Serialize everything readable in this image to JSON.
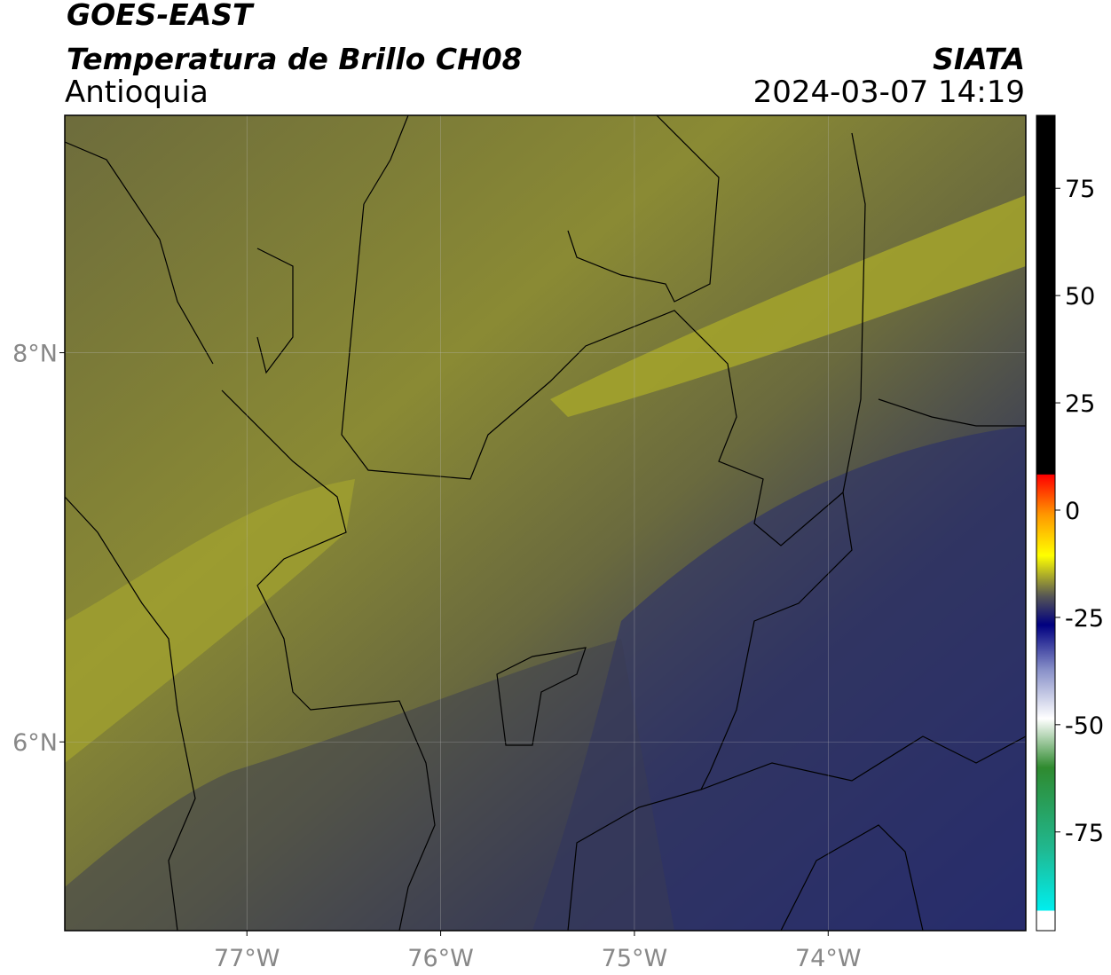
{
  "header": {
    "title": "GOES-EAST",
    "subtitle": "Temperatura de Brillo CH08",
    "source": "SIATA",
    "region": "Antioquia",
    "timestamp": "2024-03-07 14:19"
  },
  "map": {
    "xlim": [
      -77.94,
      -72.98
    ],
    "ylim": [
      5.03,
      9.22
    ],
    "xticks": [
      {
        "value": -77,
        "label": "77°W"
      },
      {
        "value": -76,
        "label": "76°W"
      },
      {
        "value": -75,
        "label": "75°W"
      },
      {
        "value": -74,
        "label": "74°W"
      }
    ],
    "yticks": [
      {
        "value": 6,
        "label": "6°N"
      },
      {
        "value": 8,
        "label": "8°N"
      }
    ]
  },
  "colorbar": {
    "lim": [
      -98,
      92
    ],
    "ticks": [
      75,
      50,
      25,
      0,
      -25,
      -50,
      -75
    ]
  }
}
